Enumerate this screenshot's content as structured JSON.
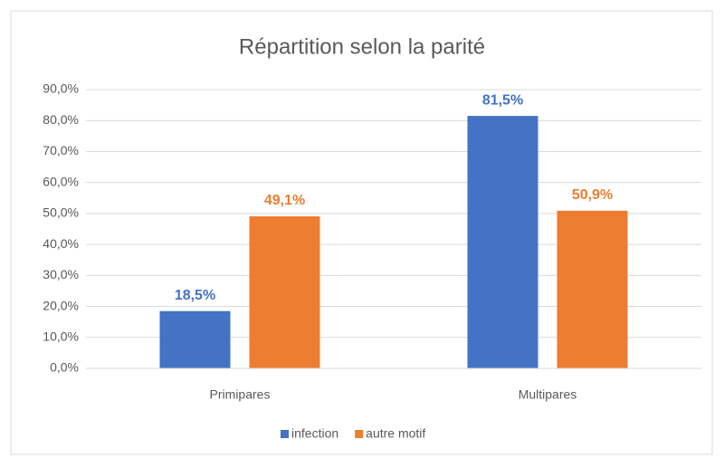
{
  "chart_data": {
    "type": "bar",
    "title": "Répartition selon la parité",
    "categories": [
      "Primipares",
      "Multipares"
    ],
    "series": [
      {
        "name": "infection",
        "color": "#4472c4",
        "values": [
          18.5,
          81.5
        ],
        "value_labels": [
          "18,5%",
          "81,5%"
        ]
      },
      {
        "name": "autre motif",
        "color": "#ed7d31",
        "values": [
          49.1,
          50.9
        ],
        "value_labels": [
          "49,1%",
          "50,9%"
        ]
      }
    ],
    "ylim": [
      0,
      90
    ],
    "yticks": [
      {
        "value": 0,
        "label": "0,0%"
      },
      {
        "value": 10,
        "label": "10,0%"
      },
      {
        "value": 20,
        "label": "20,0%"
      },
      {
        "value": 30,
        "label": "30,0%"
      },
      {
        "value": 40,
        "label": "40,0%"
      },
      {
        "value": 50,
        "label": "50,0%"
      },
      {
        "value": 60,
        "label": "60,0%"
      },
      {
        "value": 70,
        "label": "70,0%"
      },
      {
        "value": 80,
        "label": "80,0%"
      },
      {
        "value": 90,
        "label": "90,0%"
      }
    ],
    "grid": true,
    "legend": "bottom"
  }
}
